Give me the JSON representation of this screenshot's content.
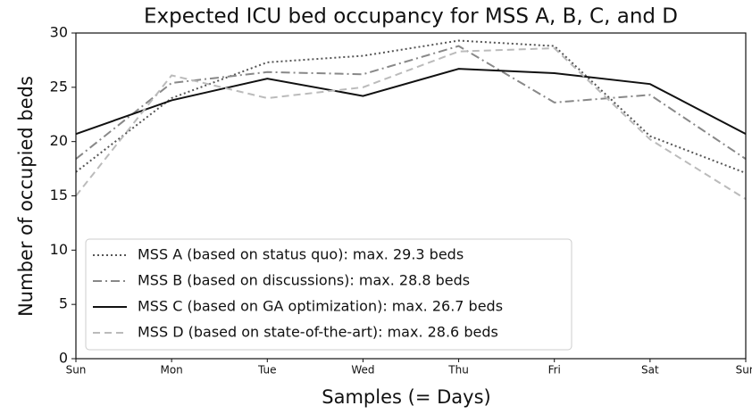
{
  "chart_data": {
    "type": "line",
    "title": "Expected ICU bed occupancy for MSS A, B, C, and D",
    "xlabel": "Samples (= Days)",
    "ylabel": "Number of occupied beds",
    "categories": [
      "Sun",
      "Mon",
      "Tue",
      "Wed",
      "Thu",
      "Fri",
      "Sat",
      "Sun"
    ],
    "series": [
      {
        "name": "MSS A (based on status quo): max. 29.3 beds",
        "color": "#555555",
        "dash": "dotted",
        "values": [
          17.2,
          24.0,
          27.3,
          27.9,
          29.3,
          28.8,
          20.5,
          17.1
        ]
      },
      {
        "name": "MSS B (based on discussions): max. 28.8 beds",
        "color": "#888888",
        "dash": "dashdot",
        "values": [
          18.4,
          25.4,
          26.4,
          26.2,
          28.8,
          23.6,
          24.3,
          18.4
        ]
      },
      {
        "name": "MSS C (based on GA optimization): max. 26.7 beds",
        "color": "#111111",
        "dash": "solid",
        "values": [
          20.7,
          23.8,
          25.8,
          24.2,
          26.7,
          26.3,
          25.3,
          20.7
        ]
      },
      {
        "name": "MSS D (based on state-of-the-art): max. 28.6 beds",
        "color": "#bbbbbb",
        "dash": "dashed",
        "values": [
          15.0,
          26.1,
          24.0,
          25.0,
          28.3,
          28.6,
          20.2,
          14.7
        ]
      }
    ],
    "ylim": [
      0,
      30
    ],
    "yticks": [
      0,
      5,
      10,
      15,
      20,
      25,
      30
    ],
    "legend": "lower left"
  }
}
